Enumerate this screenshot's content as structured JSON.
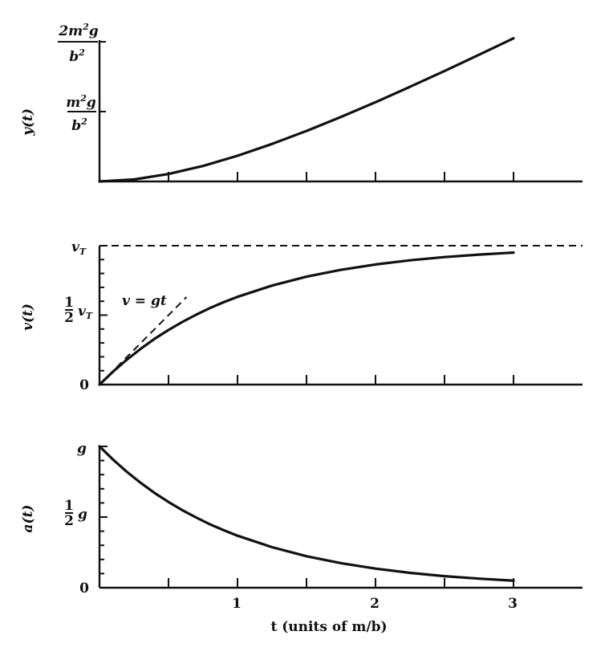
{
  "chart_data": [
    {
      "type": "line",
      "id": "position",
      "ylabel": "y(t)",
      "xlim": [
        0,
        3.5
      ],
      "ylim": [
        0,
        2
      ],
      "series": [
        {
          "name": "y(t)",
          "style": "solid",
          "x": [
            0,
            0.25,
            0.5,
            0.75,
            1,
            1.25,
            1.5,
            1.75,
            2,
            2.25,
            2.5,
            2.75,
            3
          ],
          "values": [
            0,
            0.029,
            0.107,
            0.222,
            0.368,
            0.537,
            0.723,
            0.924,
            1.135,
            1.355,
            1.582,
            1.814,
            2.05
          ]
        }
      ],
      "ytick_labels": [
        {
          "value": 2,
          "num": "2m",
          "sup": "2",
          "tail": "g",
          "den": "b",
          "den_sup": "2"
        },
        {
          "value": 1,
          "num": "m",
          "sup": "2",
          "tail": "g",
          "den": "b",
          "den_sup": "2"
        }
      ],
      "minor_xticks": [
        0.5,
        1,
        1.5,
        2,
        2.5,
        3
      ]
    },
    {
      "type": "line",
      "id": "velocity",
      "ylabel": "v(t)",
      "xlim": [
        0,
        3.5
      ],
      "ylim": [
        0,
        1
      ],
      "series": [
        {
          "name": "v(t)",
          "style": "solid",
          "x": [
            0,
            0.1,
            0.2,
            0.3,
            0.4,
            0.5,
            0.6,
            0.7,
            0.8,
            0.9,
            1,
            1.25,
            1.5,
            1.75,
            2,
            2.25,
            2.5,
            2.75,
            3
          ],
          "values": [
            0,
            0.095,
            0.181,
            0.259,
            0.33,
            0.393,
            0.451,
            0.503,
            0.551,
            0.593,
            0.632,
            0.713,
            0.777,
            0.826,
            0.865,
            0.895,
            0.918,
            0.936,
            0.95
          ]
        },
        {
          "name": "v = gt",
          "style": "dashed",
          "x": [
            0,
            0.63
          ],
          "values": [
            0,
            0.63
          ]
        },
        {
          "name": "terminal velocity",
          "style": "dashed",
          "x": [
            0,
            3.5
          ],
          "values": [
            1,
            1
          ]
        }
      ],
      "ytick_labels": [
        {
          "value": 1,
          "text": "v",
          "sub": "T"
        },
        {
          "value": 0.5,
          "frac": "1",
          "frac_den": "2",
          "text": "v",
          "sub": "T"
        },
        {
          "value": 0,
          "text": "0"
        }
      ],
      "annotations": [
        {
          "text": "v = gt",
          "x": 0.22,
          "y": 0.62
        }
      ],
      "minor_xticks": [
        0.5,
        1,
        1.5,
        2,
        2.5,
        3
      ]
    },
    {
      "type": "line",
      "id": "acceleration",
      "ylabel": "a(t)",
      "xlim": [
        0,
        3.5
      ],
      "ylim": [
        0,
        1
      ],
      "xlabel": "t (units of m/b)",
      "xtick_labels": [
        "1",
        "2",
        "3"
      ],
      "series": [
        {
          "name": "a(t)",
          "style": "solid",
          "x": [
            0,
            0.1,
            0.2,
            0.3,
            0.4,
            0.5,
            0.6,
            0.7,
            0.8,
            0.9,
            1,
            1.25,
            1.5,
            1.75,
            2,
            2.25,
            2.5,
            2.75,
            3
          ],
          "values": [
            1,
            0.905,
            0.819,
            0.741,
            0.67,
            0.607,
            0.549,
            0.497,
            0.449,
            0.407,
            0.368,
            0.287,
            0.223,
            0.174,
            0.135,
            0.105,
            0.082,
            0.064,
            0.05
          ]
        }
      ],
      "ytick_labels": [
        {
          "value": 1,
          "text": "g"
        },
        {
          "value": 0.5,
          "frac": "1",
          "frac_den": "2",
          "text": "g"
        },
        {
          "value": 0,
          "text": "0"
        }
      ],
      "minor_xticks": [
        0.5,
        1,
        1.5,
        2,
        2.5,
        3
      ]
    }
  ],
  "colors": {
    "ink": "#111111",
    "background": "#ffffff"
  }
}
